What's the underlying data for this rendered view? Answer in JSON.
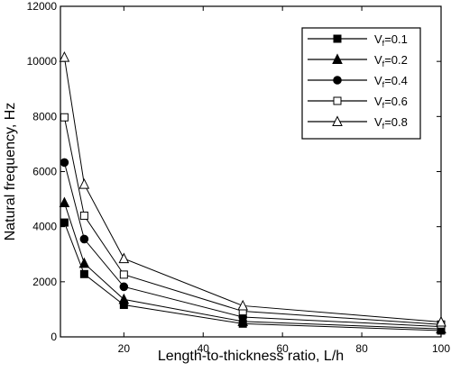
{
  "chart_data": {
    "type": "line",
    "title": "",
    "xlabel": "Length-to-thickness ratio, L/h",
    "ylabel": "Natural frequency, Hz",
    "xlim": [
      4,
      100
    ],
    "ylim": [
      0,
      12000
    ],
    "x_ticks": [
      20,
      40,
      60,
      80,
      100
    ],
    "y_ticks": [
      0,
      2000,
      4000,
      6000,
      8000,
      10000,
      12000
    ],
    "x_ticks_text": [
      "20",
      "40",
      "60",
      "80",
      "100"
    ],
    "y_ticks_text": [
      "0",
      "2000",
      "4000",
      "6000",
      "8000",
      "10000",
      "12000"
    ],
    "grid": false,
    "legend_position": "top-right",
    "x": [
      5,
      10,
      20,
      50,
      100
    ],
    "series": [
      {
        "name": "Vf=0.1",
        "label_main": "V",
        "label_sub": "f",
        "label_rest": "=0.1",
        "marker": "square-filled",
        "values": [
          4150,
          2280,
          1160,
          480,
          230
        ]
      },
      {
        "name": "Vf=0.2",
        "label_main": "V",
        "label_sub": "f",
        "label_rest": "=0.2",
        "marker": "triangle-filled",
        "values": [
          4870,
          2670,
          1360,
          560,
          290
        ]
      },
      {
        "name": "Vf=0.4",
        "label_main": "V",
        "label_sub": "f",
        "label_rest": "=0.4",
        "marker": "circle-filled",
        "values": [
          6330,
          3550,
          1820,
          720,
          370
        ]
      },
      {
        "name": "Vf=0.6",
        "label_main": "V",
        "label_sub": "f",
        "label_rest": "=0.6",
        "marker": "square-open",
        "values": [
          7970,
          4400,
          2260,
          930,
          450
        ]
      },
      {
        "name": "Vf=0.8",
        "label_main": "V",
        "label_sub": "f",
        "label_rest": "=0.8",
        "marker": "triangle-open",
        "values": [
          10150,
          5540,
          2840,
          1130,
          540
        ]
      }
    ]
  }
}
